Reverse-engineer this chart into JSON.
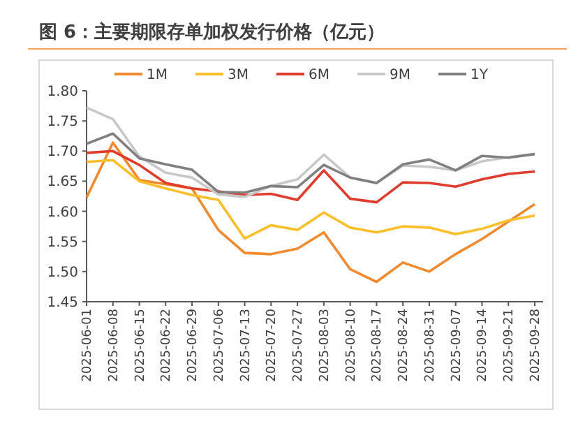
{
  "chart_data": {
    "type": "line",
    "title": "图 6：主要期限存单加权发行价格（亿元）",
    "categories": [
      "2025-06-01",
      "2025-06-08",
      "2025-06-15",
      "2025-06-22",
      "2025-06-29",
      "2025-07-06",
      "2025-07-13",
      "2025-07-20",
      "2025-07-27",
      "2025-08-03",
      "2025-08-10",
      "2025-08-17",
      "2025-08-24",
      "2025-08-31",
      "2025-09-07",
      "2025-09-14",
      "2025-09-21",
      "2025-09-28"
    ],
    "series": [
      {
        "name": "1M",
        "color": "#f28a30",
        "values": [
          1.623,
          1.714,
          1.652,
          1.645,
          1.638,
          1.569,
          1.531,
          1.529,
          1.538,
          1.565,
          1.504,
          1.483,
          1.515,
          1.5,
          1.529,
          1.554,
          1.583,
          1.612
        ]
      },
      {
        "name": "3M",
        "color": "#fbbf2b",
        "values": [
          1.682,
          1.685,
          1.65,
          1.638,
          1.627,
          1.619,
          1.555,
          1.577,
          1.569,
          1.598,
          1.573,
          1.565,
          1.575,
          1.573,
          1.562,
          1.571,
          1.585,
          1.593
        ]
      },
      {
        "name": "6M",
        "color": "#e03c2d",
        "values": [
          1.697,
          1.7,
          1.677,
          1.647,
          1.638,
          1.633,
          1.627,
          1.629,
          1.619,
          1.668,
          1.621,
          1.615,
          1.648,
          1.647,
          1.641,
          1.653,
          1.662,
          1.666
        ]
      },
      {
        "name": "9M",
        "color": "#c8c8c8",
        "values": [
          1.772,
          1.753,
          1.691,
          1.664,
          1.656,
          1.628,
          1.624,
          1.642,
          1.653,
          1.694,
          1.656,
          1.647,
          1.676,
          1.674,
          1.668,
          1.683,
          1.69,
          1.695
        ]
      },
      {
        "name": "1Y",
        "color": "#808080",
        "values": [
          1.712,
          1.729,
          1.688,
          1.678,
          1.669,
          1.632,
          1.631,
          1.642,
          1.64,
          1.677,
          1.656,
          1.647,
          1.678,
          1.686,
          1.668,
          1.692,
          1.689,
          1.695
        ]
      }
    ],
    "ylim": [
      1.45,
      1.8
    ],
    "yticks": [
      {
        "value": 1.45,
        "label": "1.45"
      },
      {
        "value": 1.5,
        "label": "1.50"
      },
      {
        "value": 1.55,
        "label": "1.55"
      },
      {
        "value": 1.6,
        "label": "1.60"
      },
      {
        "value": 1.65,
        "label": "1.65"
      },
      {
        "value": 1.7,
        "label": "1.70"
      },
      {
        "value": 1.75,
        "label": "1.75"
      },
      {
        "value": 1.8,
        "label": "1.80"
      }
    ],
    "legend": "top",
    "grid": false,
    "marker": "none",
    "line_style": "solid"
  }
}
